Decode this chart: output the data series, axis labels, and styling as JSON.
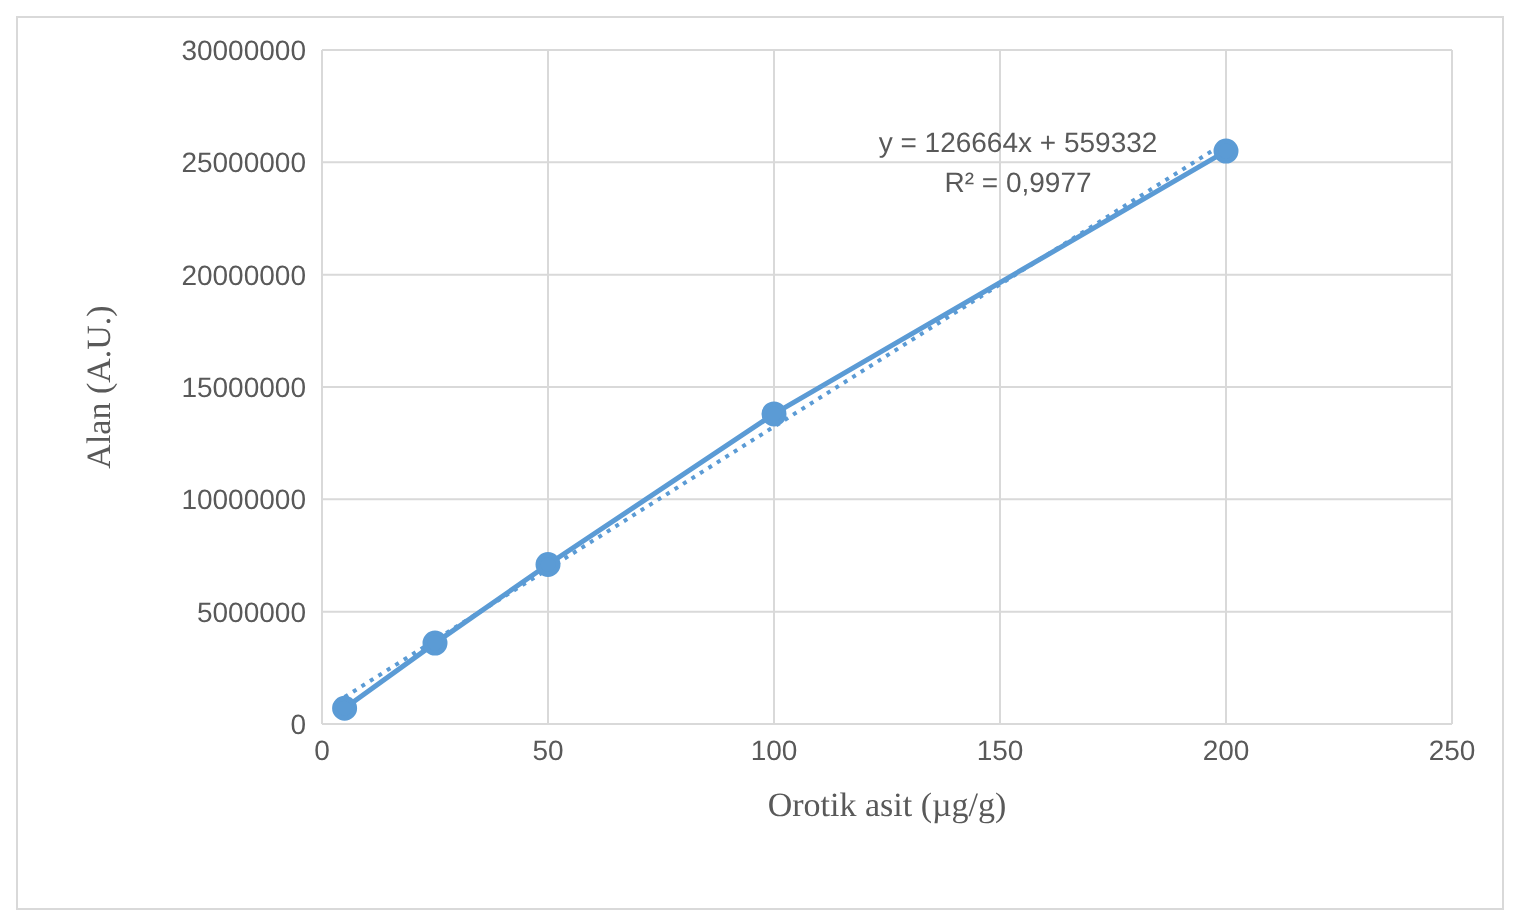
{
  "chart_data": {
    "type": "line",
    "xlabel": "Orotik asit (µg/g)",
    "ylabel": "Alan (A.U.)",
    "x": [
      5,
      25,
      50,
      100,
      200
    ],
    "series": [
      {
        "color": "#5b9bd5",
        "values": [
          700000,
          3600000,
          7100000,
          13800000,
          25500000
        ],
        "marker": "circle",
        "line_style": "solid"
      },
      {
        "type": "line",
        "x": [
          5,
          200
        ],
        "color": "#5b9bd5",
        "values": [
          1200000,
          25900000
        ],
        "marker": "none",
        "line_style": "dotted"
      }
    ],
    "xlim": [
      0,
      250
    ],
    "xticks": [
      0,
      50,
      100,
      150,
      200,
      250
    ],
    "ylim": [
      0,
      30000000
    ],
    "yticks": [
      0,
      5000000,
      10000000,
      15000000,
      20000000,
      25000000,
      30000000
    ],
    "grid": true,
    "legend": false,
    "annotations": [
      "y = 126664x + 559332",
      "R² = 0,9977"
    ]
  }
}
